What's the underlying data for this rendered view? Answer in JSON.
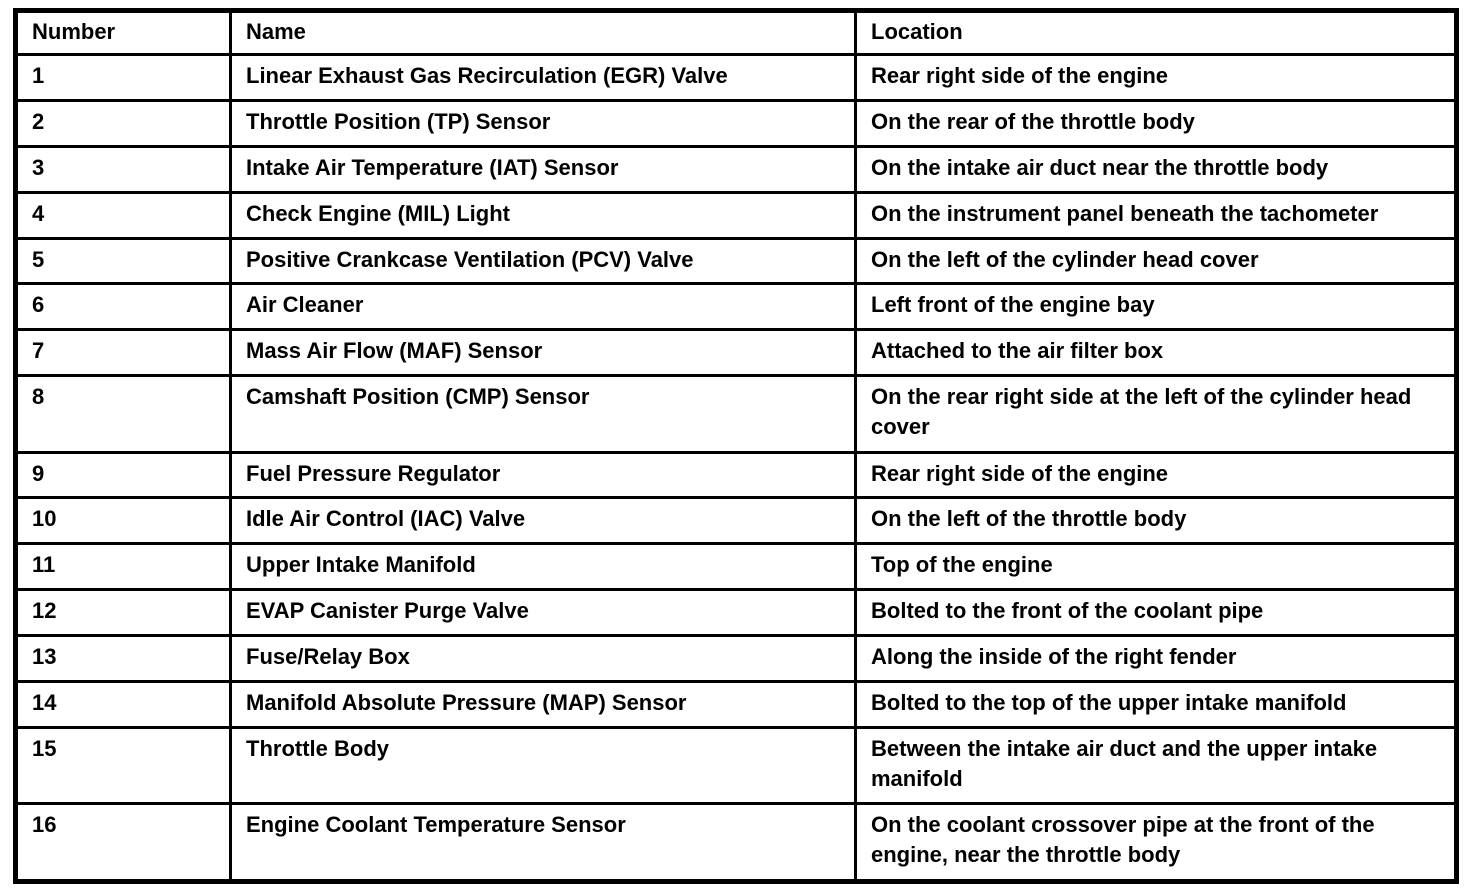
{
  "table": {
    "columns": [
      "Number",
      "Name",
      "Location"
    ],
    "rows": [
      {
        "number": "1",
        "name": "Linear Exhaust Gas Recirculation (EGR) Valve",
        "location": "Rear right side of the engine"
      },
      {
        "number": "2",
        "name": "Throttle Position (TP) Sensor",
        "location": "On the rear of the throttle body"
      },
      {
        "number": "3",
        "name": "Intake Air Temperature (IAT) Sensor",
        "location": "On the intake air duct near the throttle body"
      },
      {
        "number": "4",
        "name": "Check Engine (MIL) Light",
        "location": "On the instrument panel beneath the tachometer"
      },
      {
        "number": "5",
        "name": "Positive Crankcase Ventilation (PCV) Valve",
        "location": "On the left of the cylinder head cover"
      },
      {
        "number": "6",
        "name": "Air Cleaner",
        "location": "Left front of the engine bay"
      },
      {
        "number": "7",
        "name": "Mass Air Flow (MAF) Sensor",
        "location": "Attached to the air filter box"
      },
      {
        "number": "8",
        "name": "Camshaft Position (CMP) Sensor",
        "location": "On the rear right side at the left of the cylinder head cover"
      },
      {
        "number": "9",
        "name": "Fuel Pressure Regulator",
        "location": "Rear right side of the engine"
      },
      {
        "number": "10",
        "name": "Idle Air Control (IAC) Valve",
        "location": "On the left of the throttle body"
      },
      {
        "number": "11",
        "name": "Upper Intake Manifold",
        "location": "Top of the engine"
      },
      {
        "number": "12",
        "name": "EVAP Canister Purge Valve",
        "location": "Bolted to the front of the coolant pipe"
      },
      {
        "number": "13",
        "name": "Fuse/Relay Box",
        "location": "Along the inside of the right fender"
      },
      {
        "number": "14",
        "name": "Manifold Absolute Pressure (MAP) Sensor",
        "location": "Bolted to the top of the upper intake manifold"
      },
      {
        "number": "15",
        "name": "Throttle Body",
        "location": "Between the intake air duct and the upper intake manifold"
      },
      {
        "number": "16",
        "name": "Engine Coolant Temperature Sensor",
        "location": "On the coolant crossover pipe at the front of the engine, near the throttle body"
      }
    ]
  }
}
